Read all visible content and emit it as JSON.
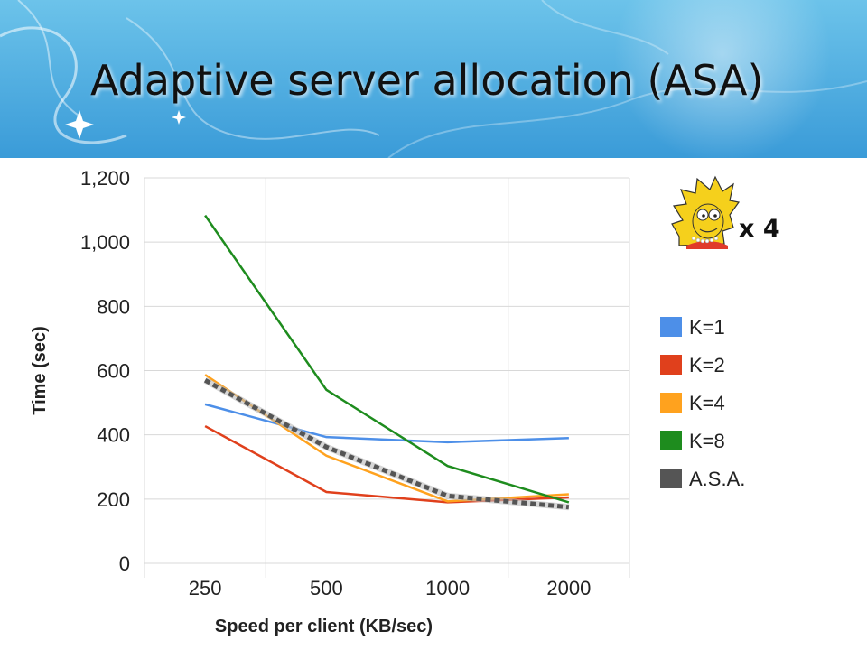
{
  "slide": {
    "title": "Adaptive server allocation (ASA)",
    "multiplier": "x 4",
    "character_icon": "cartoon-girl-icon"
  },
  "colors": {
    "banner_top": "#5fb8e6",
    "banner_bottom": "#2f93d2",
    "k1": "#4d8fe8",
    "k2": "#e0401c",
    "k4": "#ffa21e",
    "k8": "#1e8c1e",
    "asa": "#555555",
    "grid": "#d8d8d8"
  },
  "chart_data": {
    "type": "line",
    "title": "",
    "xlabel": "Speed per client (KB/sec)",
    "ylabel": "Time (sec)",
    "categories": [
      "250",
      "500",
      "1000",
      "2000"
    ],
    "ylim": [
      0,
      1200
    ],
    "yticks": [
      0,
      200,
      400,
      600,
      800,
      1000,
      1200
    ],
    "ytick_labels": [
      "0",
      "200",
      "400",
      "600",
      "800",
      "1,000",
      "1,200"
    ],
    "grid": true,
    "legend_position": "right",
    "series": [
      {
        "name": "K=1",
        "color": "#4d8fe8",
        "values": [
          495,
          393,
          377,
          390
        ]
      },
      {
        "name": "K=2",
        "color": "#e0401c",
        "values": [
          427,
          222,
          190,
          205
        ]
      },
      {
        "name": "K=4",
        "color": "#ffa21e",
        "values": [
          587,
          335,
          193,
          215
        ]
      },
      {
        "name": "K=8",
        "color": "#1e8c1e",
        "values": [
          1083,
          540,
          303,
          190
        ]
      },
      {
        "name": "A.S.A.",
        "color": "#555555",
        "style": "dashed",
        "values": [
          570,
          362,
          210,
          175
        ]
      }
    ]
  }
}
